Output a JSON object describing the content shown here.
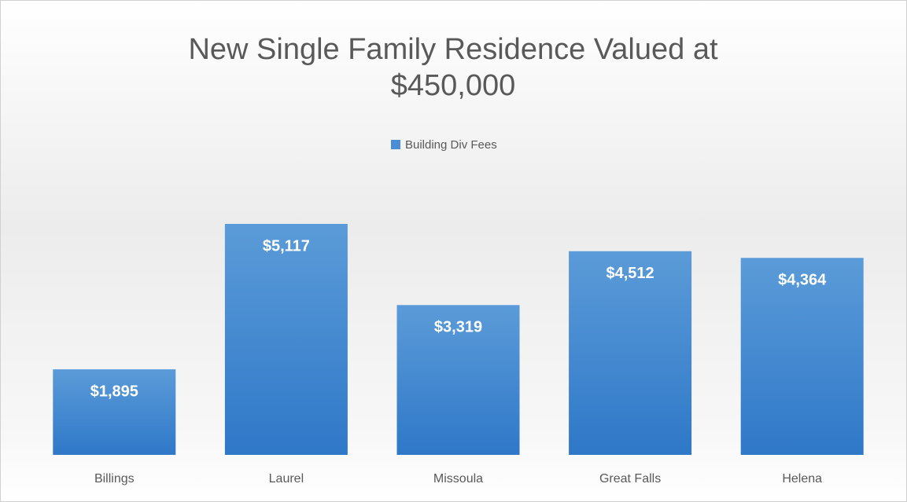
{
  "chart_data": {
    "type": "bar",
    "title": "New Single Family Residence Valued at $450,000",
    "categories": [
      "Billings",
      "Laurel",
      "Missoula",
      "Great Falls",
      "Helena"
    ],
    "series": [
      {
        "name": "Building Div Fees",
        "color": "#4a8fd6",
        "values": [
          1895,
          5117,
          3319,
          4512,
          4364
        ],
        "value_labels": [
          "$1,895",
          "$5,117",
          "$3,319",
          "$4,512",
          "$4,364"
        ]
      }
    ],
    "legend": "top"
  }
}
